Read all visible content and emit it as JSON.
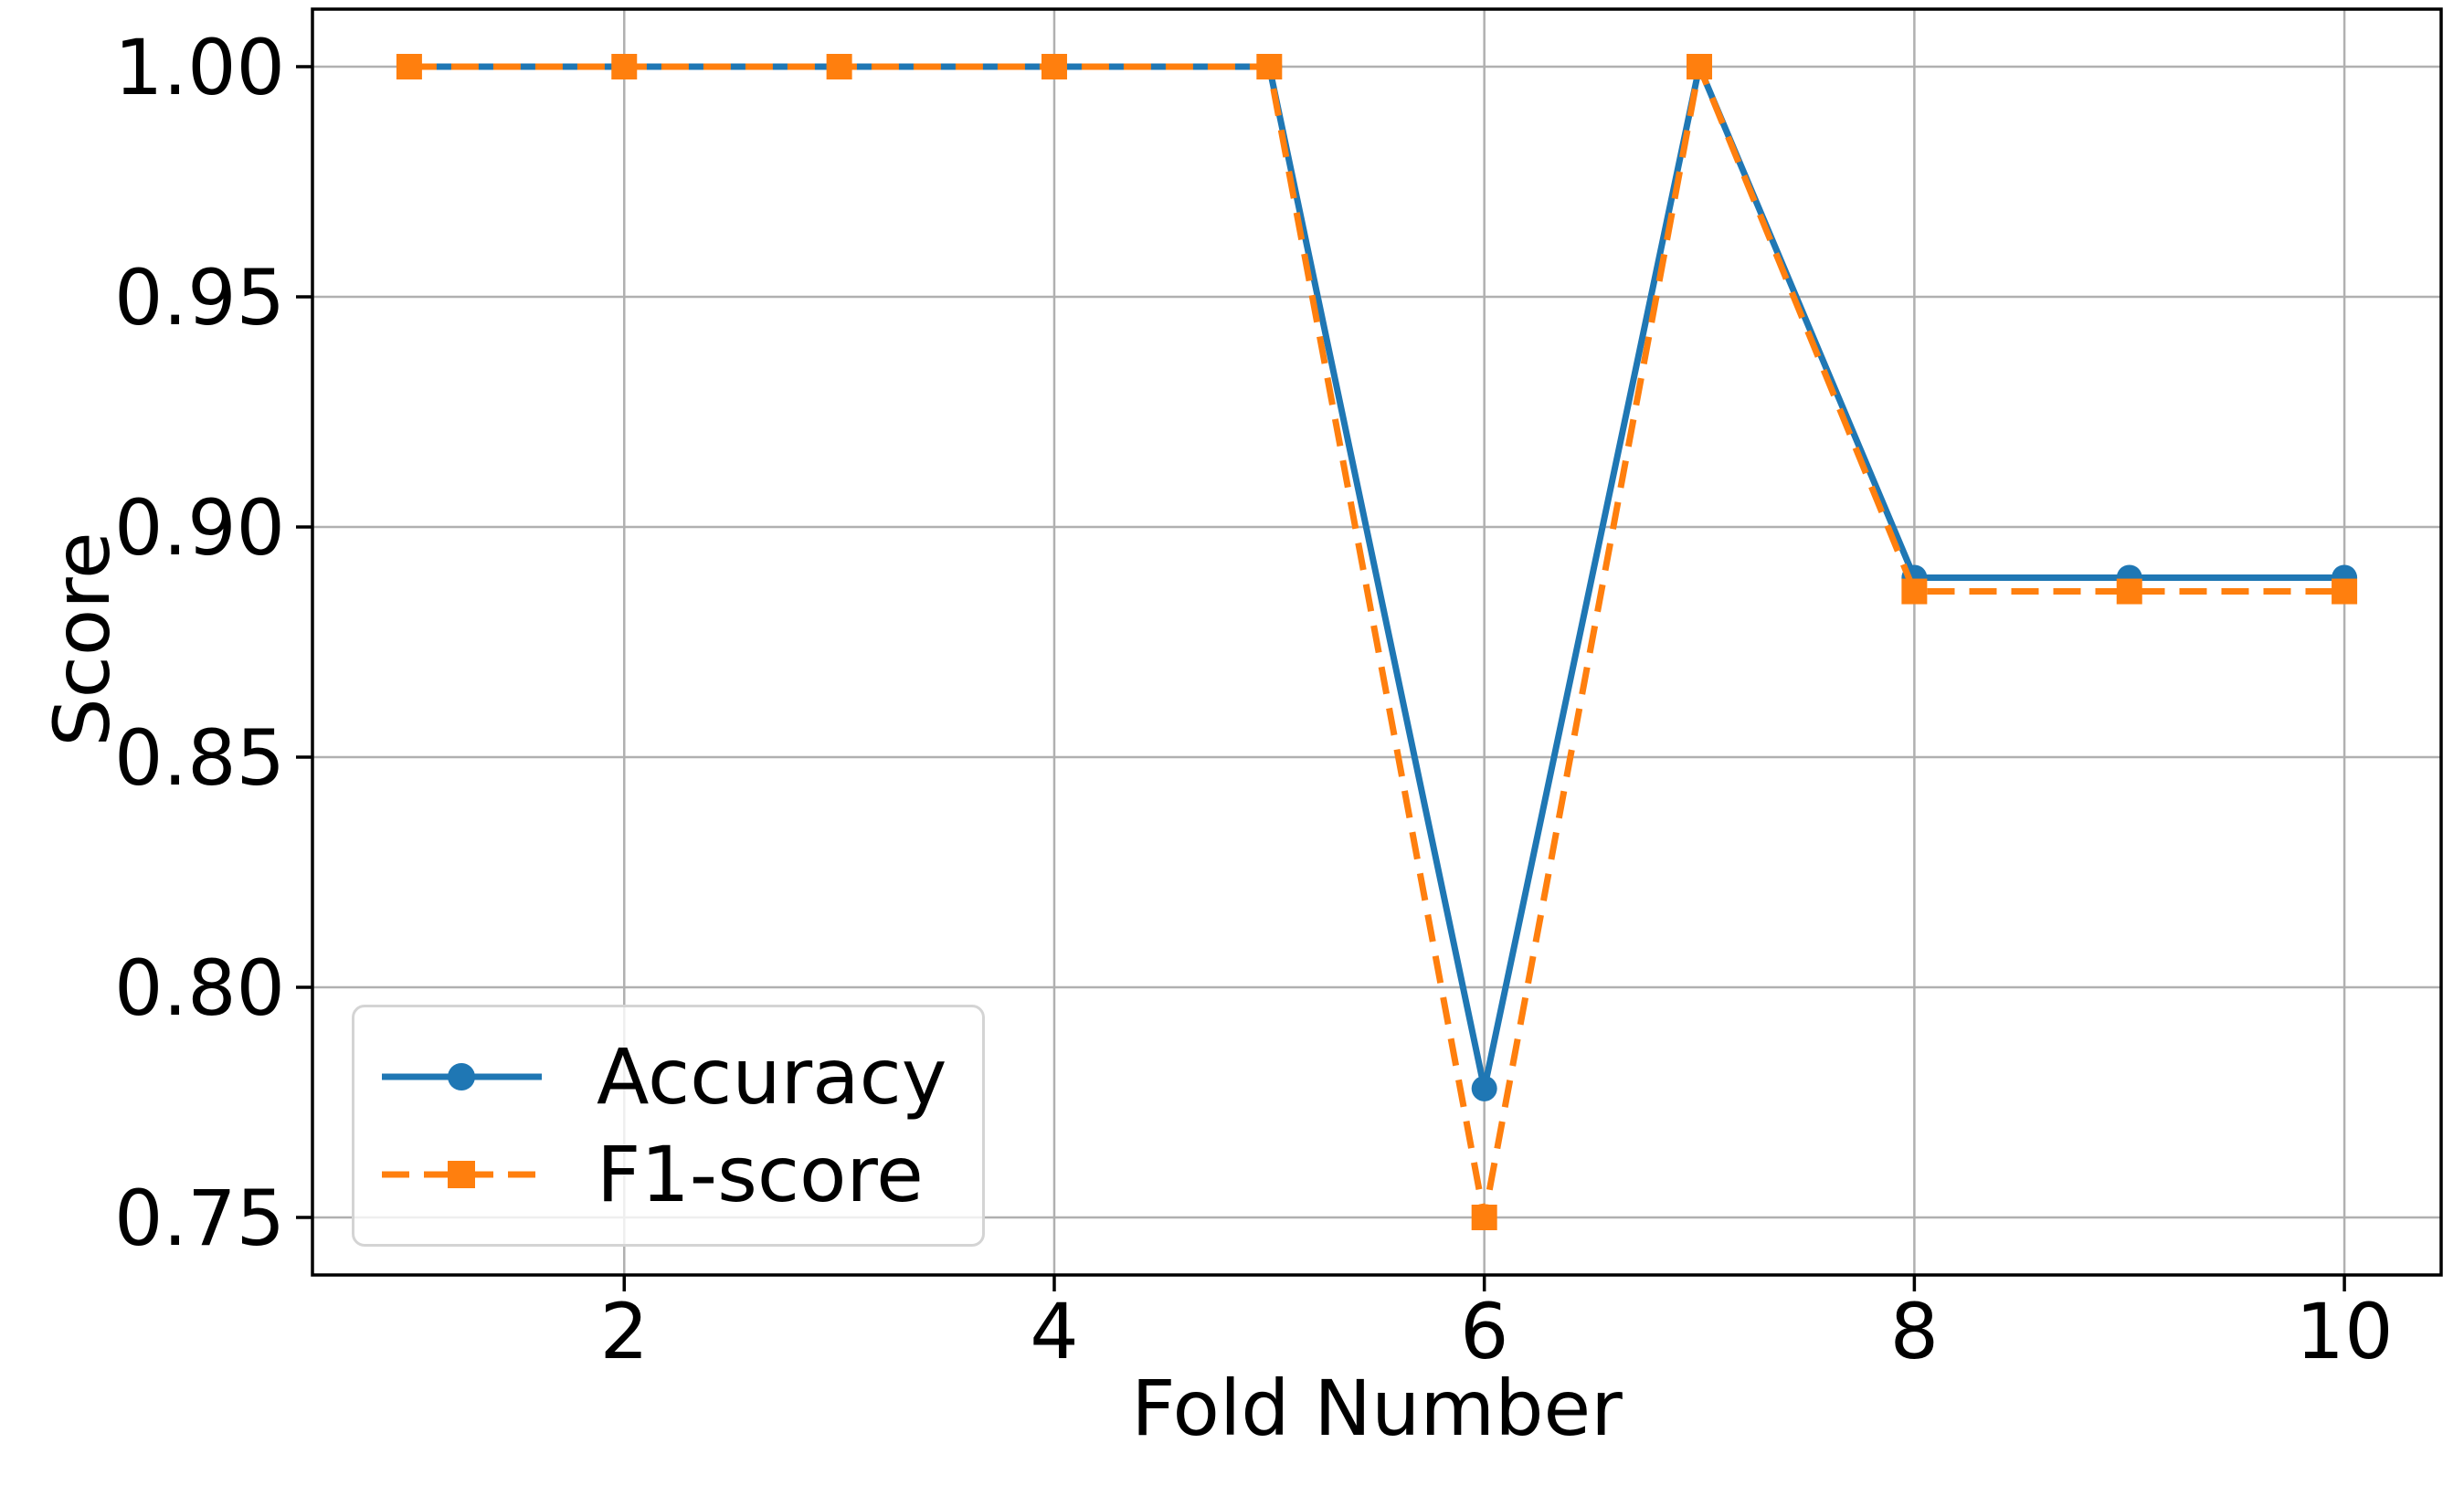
{
  "figure": {
    "background_color": "#ffffff",
    "spine_color": "#000000",
    "text_color": "#000000"
  },
  "chart_data": {
    "type": "line",
    "title": "",
    "xlabel": "Fold Number",
    "ylabel": "Score",
    "x": [
      1,
      2,
      3,
      4,
      5,
      6,
      7,
      8,
      9,
      10
    ],
    "series": [
      {
        "name": "Accuracy",
        "color": "#1f77b4",
        "linestyle": "solid",
        "marker": "circle",
        "values": [
          1.0,
          1.0,
          1.0,
          1.0,
          1.0,
          0.778,
          1.0,
          0.889,
          0.889,
          0.889
        ]
      },
      {
        "name": "F1-score",
        "color": "#ff7f0e",
        "linestyle": "dashed",
        "marker": "square",
        "values": [
          1.0,
          1.0,
          1.0,
          1.0,
          1.0,
          0.75,
          1.0,
          0.886,
          0.886,
          0.886
        ]
      }
    ],
    "xlim": [
      0.55,
      10.45
    ],
    "ylim": [
      0.7375,
      1.0125
    ],
    "xticks": {
      "values": [
        2,
        4,
        6,
        8,
        10
      ],
      "labels": [
        "2",
        "4",
        "6",
        "8",
        "10"
      ]
    },
    "yticks": {
      "values": [
        0.75,
        0.8,
        0.85,
        0.9,
        0.95,
        1.0
      ],
      "labels": [
        "0.75",
        "0.80",
        "0.85",
        "0.90",
        "0.95",
        "1.00"
      ]
    },
    "grid": true,
    "grid_color": "#b0b0b0",
    "legend": {
      "position": "lower left",
      "entries": [
        "Accuracy",
        "F1-score"
      ]
    }
  }
}
